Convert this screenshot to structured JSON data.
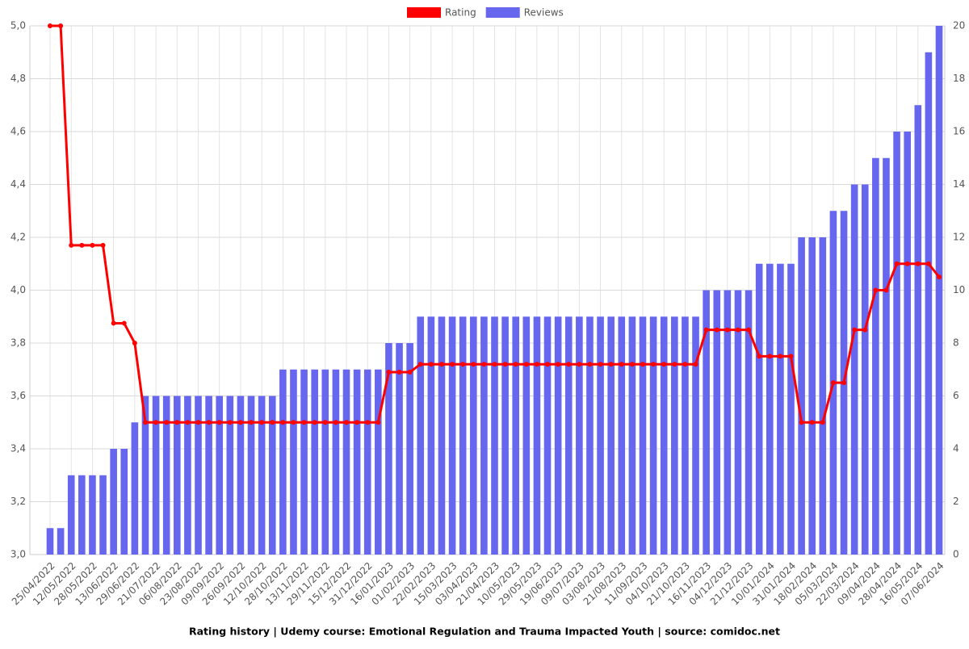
{
  "chart_data": {
    "type": "bar-line",
    "title": "Rating history | Udemy course: Emotional Regulation and Trauma Impacted Youth | source: comidoc.net",
    "categories": [
      "25/04/2022",
      null,
      "12/05/2022",
      null,
      "28/05/2022",
      null,
      "13/06/2022",
      null,
      "29/06/2022",
      null,
      "21/07/2022",
      null,
      "06/08/2022",
      null,
      "23/08/2022",
      null,
      "09/09/2022",
      null,
      "26/09/2022",
      null,
      "12/10/2022",
      null,
      "28/10/2022",
      null,
      "13/11/2022",
      null,
      "29/11/2022",
      null,
      "15/12/2022",
      null,
      "31/12/2022",
      null,
      "16/01/2023",
      null,
      "01/02/2023",
      null,
      "22/02/2023",
      null,
      "15/03/2023",
      null,
      "03/04/2023",
      null,
      "21/04/2023",
      null,
      "10/05/2023",
      null,
      "29/05/2023",
      null,
      "19/06/2023",
      null,
      "09/07/2023",
      null,
      "03/08/2023",
      null,
      "21/08/2023",
      null,
      "11/09/2023",
      null,
      "04/10/2023",
      null,
      "21/10/2023",
      null,
      "16/11/2023",
      null,
      "04/12/2023",
      null,
      "21/12/2023",
      null,
      "10/01/2024",
      null,
      "31/01/2024",
      null,
      "18/02/2024",
      null,
      "05/03/2024",
      null,
      "22/03/2024",
      null,
      "09/04/2024",
      null,
      "28/04/2024",
      null,
      "16/05/2024",
      null,
      "07/06/2024"
    ],
    "series": [
      {
        "name": "Rating",
        "type": "line",
        "color": "#ff0000",
        "values": [
          5.0,
          5.0,
          4.17,
          4.17,
          4.17,
          4.17,
          3.875,
          3.875,
          3.8,
          3.5,
          3.5,
          3.5,
          3.5,
          3.5,
          3.5,
          3.5,
          3.5,
          3.5,
          3.5,
          3.5,
          3.5,
          3.5,
          3.5,
          3.5,
          3.5,
          3.5,
          3.5,
          3.5,
          3.5,
          3.5,
          3.5,
          3.5,
          3.69,
          3.69,
          3.69,
          3.72,
          3.72,
          3.72,
          3.72,
          3.72,
          3.72,
          3.72,
          3.72,
          3.72,
          3.72,
          3.72,
          3.72,
          3.72,
          3.72,
          3.72,
          3.72,
          3.72,
          3.72,
          3.72,
          3.72,
          3.72,
          3.72,
          3.72,
          3.72,
          3.72,
          3.72,
          3.72,
          3.85,
          3.85,
          3.85,
          3.85,
          3.85,
          3.75,
          3.75,
          3.75,
          3.75,
          3.5,
          3.5,
          3.5,
          3.65,
          3.65,
          3.85,
          3.85,
          4.0,
          4.0,
          4.1,
          4.1,
          4.1,
          4.1,
          4.05
        ]
      },
      {
        "name": "Reviews",
        "type": "bar",
        "axis": "y2",
        "color": "#6666ee",
        "values": [
          1,
          1,
          3,
          3,
          3,
          3,
          4,
          4,
          5,
          6,
          6,
          6,
          6,
          6,
          6,
          6,
          6,
          6,
          6,
          6,
          6,
          6,
          7,
          7,
          7,
          7,
          7,
          7,
          7,
          7,
          7,
          7,
          8,
          8,
          8,
          9,
          9,
          9,
          9,
          9,
          9,
          9,
          9,
          9,
          9,
          9,
          9,
          9,
          9,
          9,
          9,
          9,
          9,
          9,
          9,
          9,
          9,
          9,
          9,
          9,
          9,
          9,
          10,
          10,
          10,
          10,
          10,
          11,
          11,
          11,
          11,
          12,
          12,
          12,
          13,
          13,
          14,
          14,
          15,
          15,
          16,
          16,
          17,
          19,
          20
        ]
      }
    ],
    "ylim": [
      3.0,
      5.0
    ],
    "yticks": [
      {
        "value": 3.0,
        "label": "3,0"
      },
      {
        "value": 3.2,
        "label": "3,2"
      },
      {
        "value": 3.4,
        "label": "3,4"
      },
      {
        "value": 3.6,
        "label": "3,6"
      },
      {
        "value": 3.8,
        "label": "3,8"
      },
      {
        "value": 4.0,
        "label": "4,0"
      },
      {
        "value": 4.2,
        "label": "4,2"
      },
      {
        "value": 4.4,
        "label": "4,4"
      },
      {
        "value": 4.6,
        "label": "4,6"
      },
      {
        "value": 4.8,
        "label": "4,8"
      },
      {
        "value": 5.0,
        "label": "5,0"
      }
    ],
    "y2lim": [
      0,
      20
    ],
    "y2ticks": [
      0,
      2,
      4,
      6,
      8,
      10,
      12,
      14,
      16,
      18,
      20
    ],
    "grid": true,
    "legend": "top"
  }
}
